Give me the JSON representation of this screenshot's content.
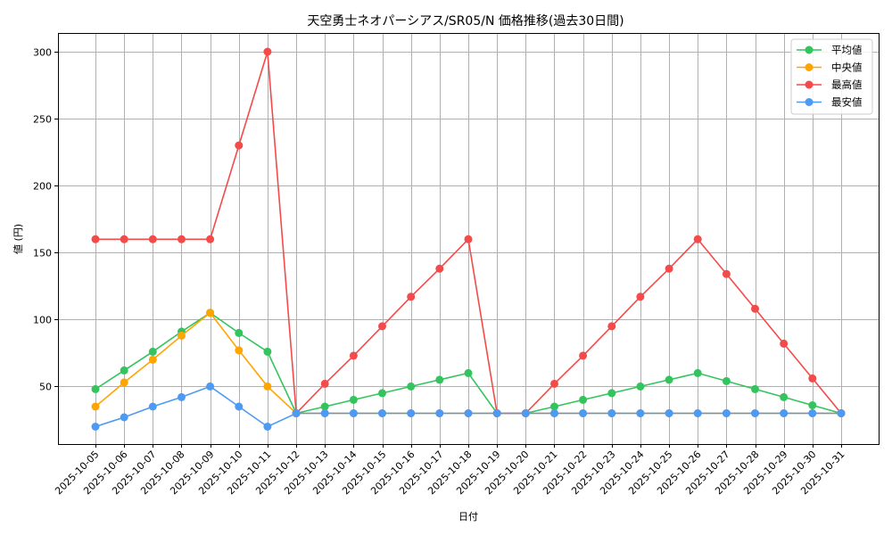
{
  "chart_data": {
    "type": "line",
    "title": "天空勇士ネオパーシアス/SR05/N 価格推移(過去30日間)",
    "xlabel": "日付",
    "ylabel": "値 (円)",
    "ylim": [
      7,
      314
    ],
    "yticks": [
      50,
      100,
      150,
      200,
      250,
      300
    ],
    "grid": true,
    "legend_position": "upper right",
    "categories": [
      "2025-10-05",
      "2025-10-06",
      "2025-10-07",
      "2025-10-08",
      "2025-10-09",
      "2025-10-10",
      "2025-10-11",
      "2025-10-12",
      "2025-10-13",
      "2025-10-14",
      "2025-10-15",
      "2025-10-16",
      "2025-10-17",
      "2025-10-18",
      "2025-10-19",
      "2025-10-20",
      "2025-10-21",
      "2025-10-22",
      "2025-10-23",
      "2025-10-24",
      "2025-10-25",
      "2025-10-26",
      "2025-10-27",
      "2025-10-28",
      "2025-10-29",
      "2025-10-30",
      "2025-10-31"
    ],
    "series": [
      {
        "name": "平均値",
        "color": "#33c45e",
        "values": [
          48,
          62,
          76,
          91,
          105,
          90,
          76,
          30,
          35,
          40,
          45,
          50,
          55,
          60,
          30,
          30,
          35,
          40,
          45,
          50,
          55,
          60,
          54,
          48,
          42,
          36,
          30
        ]
      },
      {
        "name": "中央値",
        "color": "#ffa500",
        "values": [
          35,
          53,
          70,
          88,
          105,
          77,
          50,
          30,
          30,
          30,
          30,
          30,
          30,
          30,
          30,
          30,
          30,
          30,
          30,
          30,
          30,
          30,
          30,
          30,
          30,
          30,
          30
        ]
      },
      {
        "name": "最高値",
        "color": "#f44a4a",
        "values": [
          160,
          160,
          160,
          160,
          160,
          230,
          300,
          30,
          52,
          73,
          95,
          117,
          138,
          160,
          30,
          30,
          52,
          73,
          95,
          117,
          138,
          160,
          134,
          108,
          82,
          56,
          30
        ]
      },
      {
        "name": "最安値",
        "color": "#4d9af5",
        "values": [
          20,
          27,
          35,
          42,
          50,
          35,
          20,
          30,
          30,
          30,
          30,
          30,
          30,
          30,
          30,
          30,
          30,
          30,
          30,
          30,
          30,
          30,
          30,
          30,
          30,
          30,
          30
        ]
      }
    ]
  },
  "style": {
    "grid_color": "#b0b0b0",
    "axis_color": "#000000",
    "legend_border": "#cccccc"
  }
}
